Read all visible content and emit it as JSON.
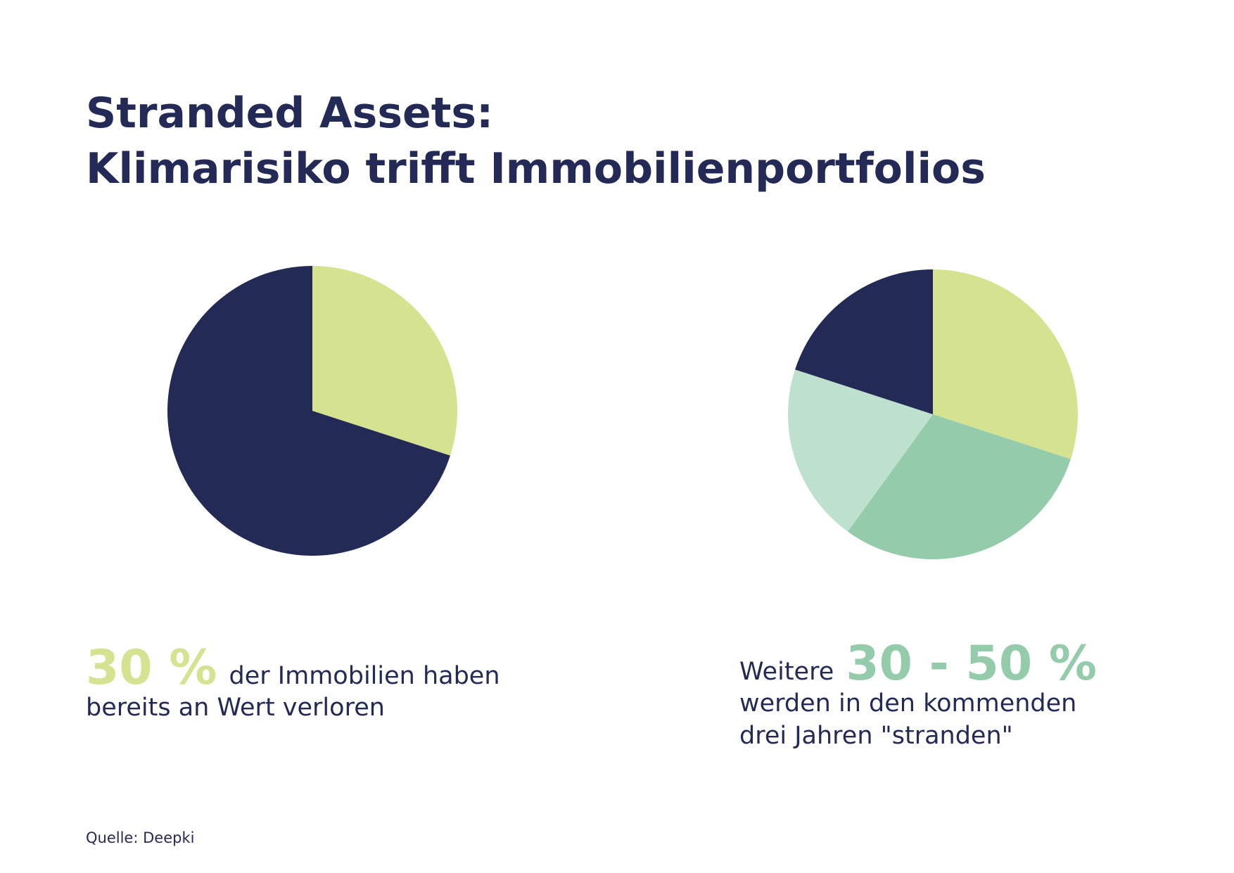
{
  "title": [
    "Stranded Assets:",
    "Klimarisiko trifft Immobilienportfolios"
  ],
  "source": "Quelle: Deepki",
  "chart_data": [
    {
      "type": "pie",
      "values": [
        30,
        70
      ],
      "colors": [
        "#d5e290",
        "#242a56"
      ],
      "highlight": "30 %",
      "caption": [
        "der Immobilien haben",
        "bereits an Wert verloren"
      ]
    },
    {
      "type": "pie",
      "values": [
        30,
        30,
        20,
        20
      ],
      "colors": [
        "#d5e290",
        "#93cbab",
        "#bde0cf",
        "#242a56"
      ],
      "caption_lead": "Weitere",
      "highlight": "30 - 50 %",
      "caption": [
        "werden in den kommenden",
        "drei Jahren \"stranden\""
      ]
    }
  ]
}
